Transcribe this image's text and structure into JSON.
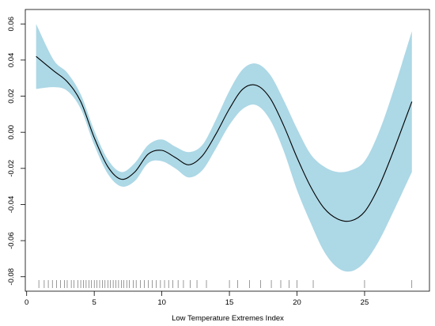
{
  "chart_data": {
    "type": "line",
    "xlabel": "Low Temperature Extremes Index",
    "x": [
      0.7,
      2,
      3,
      4,
      5,
      6,
      7,
      8,
      9,
      10,
      11,
      12,
      13,
      14,
      15,
      16,
      17,
      18,
      19,
      20,
      21,
      22,
      23,
      24,
      25,
      26,
      27,
      28.5
    ],
    "values": [
      0.042,
      0.034,
      0.028,
      0.017,
      -0.003,
      -0.019,
      -0.026,
      -0.022,
      -0.012,
      -0.01,
      -0.014,
      -0.018,
      -0.013,
      -0.001,
      0.013,
      0.024,
      0.026,
      0.019,
      0.004,
      -0.014,
      -0.03,
      -0.042,
      -0.048,
      -0.049,
      -0.044,
      -0.031,
      -0.013,
      0.017
    ],
    "upper": [
      0.06,
      0.04,
      0.033,
      0.021,
      0.001,
      -0.015,
      -0.022,
      -0.017,
      -0.007,
      -0.004,
      -0.008,
      -0.011,
      -0.007,
      0.007,
      0.023,
      0.035,
      0.038,
      0.032,
      0.018,
      0.002,
      -0.012,
      -0.019,
      -0.022,
      -0.021,
      -0.016,
      -0.001,
      0.02,
      0.056
    ],
    "lower": [
      0.024,
      0.025,
      0.023,
      0.013,
      -0.007,
      -0.023,
      -0.03,
      -0.027,
      -0.017,
      -0.016,
      -0.02,
      -0.025,
      -0.021,
      -0.009,
      0.004,
      0.013,
      0.015,
      0.007,
      -0.01,
      -0.032,
      -0.05,
      -0.066,
      -0.075,
      -0.077,
      -0.072,
      -0.061,
      -0.046,
      -0.022
    ],
    "line_color": "#000000",
    "band_color": "#add8e6",
    "rug": [
      0.9,
      1.3,
      1.6,
      1.9,
      2.2,
      2.5,
      2.8,
      3.0,
      3.3,
      3.5,
      3.8,
      4.0,
      4.2,
      4.4,
      4.6,
      4.8,
      5.0,
      5.2,
      5.4,
      5.6,
      5.8,
      6.0,
      6.2,
      6.4,
      6.6,
      6.8,
      7.0,
      7.2,
      7.4,
      7.6,
      7.9,
      8.1,
      8.4,
      8.7,
      9.0,
      9.3,
      9.6,
      9.9,
      10.2,
      10.5,
      10.8,
      11.2,
      11.6,
      12.1,
      12.6,
      13.3,
      15.0,
      15.6,
      16.5,
      17.3,
      18.1,
      18.8,
      19.4,
      20.0,
      21.2,
      25.0,
      28.5
    ],
    "xlim": [
      -0.1,
      29.8
    ],
    "ylim": [
      -0.088,
      0.068
    ],
    "xticks": [
      0,
      5,
      10,
      15,
      20,
      25
    ],
    "yticks": [
      -0.08,
      -0.06,
      -0.04,
      -0.02,
      {
        "value": 0,
        "label": "0.00"
      },
      0.02,
      0.04,
      0.06
    ]
  }
}
